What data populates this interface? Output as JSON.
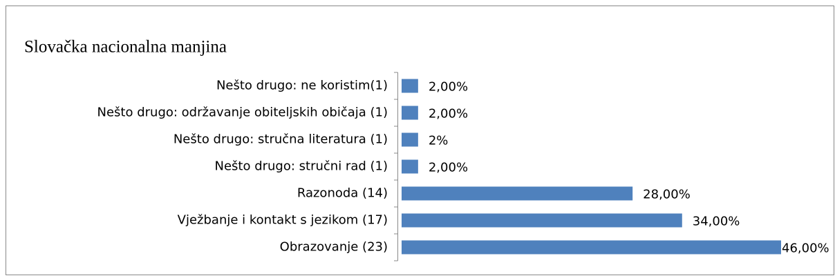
{
  "chart_data": {
    "type": "bar",
    "orientation": "horizontal",
    "title": "Slovačka nacionalna manjina",
    "categories": [
      "Nešto drugo: ne koristim(1)",
      "Nešto drugo: održavanje obiteljskih običaja (1)",
      "Nešto drugo: stručna literatura (1)",
      "Nešto drugo: stručni rad (1)",
      "Razonoda (14)",
      "Vježbanje i kontakt s jezikom (17)",
      "Obrazovanje (23)"
    ],
    "values": [
      2,
      2,
      2,
      2,
      28,
      34,
      46
    ],
    "value_labels": [
      "2,00%",
      "2,00%",
      "2%",
      "2,00%",
      "28,00%",
      "34,00%",
      "46,00%"
    ],
    "color": "#4f81bd"
  }
}
